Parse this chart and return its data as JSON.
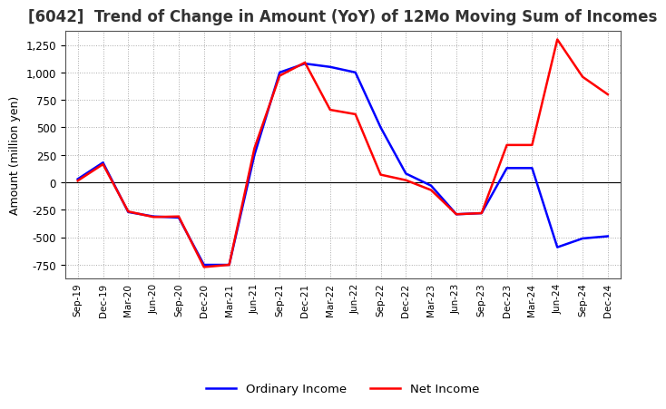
{
  "title": "[6042]  Trend of Change in Amount (YoY) of 12Mo Moving Sum of Incomes",
  "ylabel": "Amount (million yen)",
  "labels": [
    "Sep-19",
    "Dec-19",
    "Mar-20",
    "Jun-20",
    "Sep-20",
    "Dec-20",
    "Mar-21",
    "Jun-21",
    "Sep-21",
    "Dec-21",
    "Mar-22",
    "Jun-22",
    "Sep-22",
    "Dec-22",
    "Mar-23",
    "Jun-23",
    "Sep-23",
    "Dec-23",
    "Mar-24",
    "Jun-24",
    "Sep-24",
    "Dec-24"
  ],
  "ordinary_income": [
    30,
    180,
    -270,
    -310,
    -320,
    -750,
    -750,
    250,
    1000,
    1080,
    1050,
    1000,
    500,
    80,
    -30,
    -290,
    -280,
    130,
    130,
    -590,
    -510,
    -490
  ],
  "net_income": [
    15,
    165,
    -265,
    -315,
    -310,
    -770,
    -750,
    310,
    970,
    1090,
    660,
    620,
    70,
    20,
    -70,
    -290,
    -280,
    340,
    340,
    1300,
    960,
    800
  ],
  "ordinary_color": "#0000FF",
  "net_color": "#FF0000",
  "line_width": 1.8,
  "ylim": [
    -875,
    1375
  ],
  "yticks": [
    -750,
    -500,
    -250,
    0,
    250,
    500,
    750,
    1000,
    1250
  ],
  "background_color": "#FFFFFF",
  "grid_color": "#AAAAAA",
  "title_fontsize": 12,
  "legend_labels": [
    "Ordinary Income",
    "Net Income"
  ]
}
